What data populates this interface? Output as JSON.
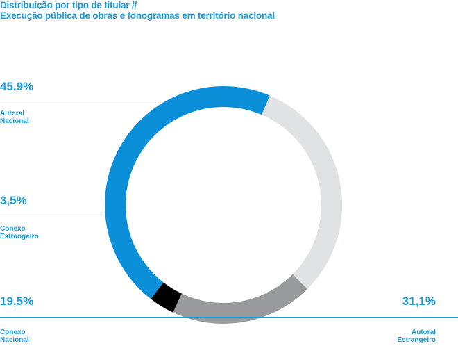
{
  "title": {
    "line1": "Distribuição por tipo de titular //",
    "line2": "Execução pública de obras e fonogramas em território nacional"
  },
  "colors": {
    "text": "#1a9ad6",
    "autoral_nacional": "#0b8fd8",
    "conexo_estrangeiro": "#000000",
    "conexo_nacional": "#999a9c",
    "autoral_estrangeiro": "#e1e2e4"
  },
  "chart_data": {
    "type": "pie",
    "style": "donut",
    "title": "Distribuição por tipo de titular // Execução pública de obras e fonogramas em território nacional",
    "slices": [
      {
        "key": "autoral_nacional",
        "value": 45.9,
        "display": "45,9%",
        "label": [
          "Autoral",
          "Nacional"
        ],
        "color": "#0b8fd8"
      },
      {
        "key": "conexo_estrangeiro",
        "value": 3.5,
        "display": "3,5%",
        "label": [
          "Conexo",
          "Estrangeiro"
        ],
        "color": "#000000"
      },
      {
        "key": "conexo_nacional",
        "value": 19.5,
        "display": "19,5%",
        "label": [
          "Conexo",
          "Nacional"
        ],
        "color": "#999a9c"
      },
      {
        "key": "autoral_estrangeiro",
        "value": 31.1,
        "display": "31,1%",
        "label": [
          "Autoral",
          "Estrangeiro"
        ],
        "color": "#e1e2e4"
      }
    ]
  }
}
